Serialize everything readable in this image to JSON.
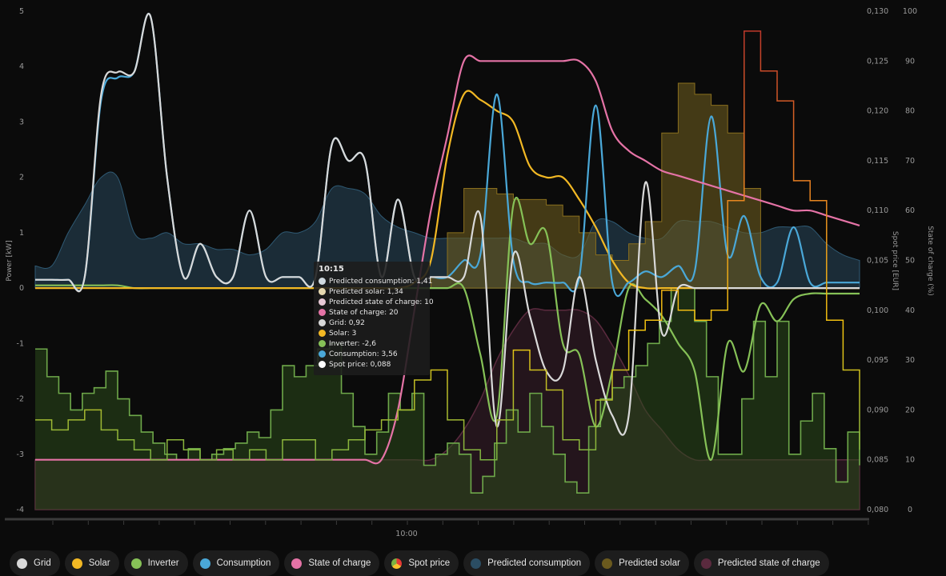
{
  "chart_data": {
    "type": "line",
    "x_axis": {
      "center_label": "10:00"
    },
    "y_axes": {
      "power": {
        "title": "Power [kW]",
        "range": [
          -4,
          5
        ],
        "ticks": [
          "5",
          "4",
          "3",
          "2",
          "1",
          "0",
          "-1",
          "-2",
          "-3",
          "-4"
        ]
      },
      "spot_price": {
        "title": "Spot price [EUR]",
        "range": [
          0.08,
          0.13
        ],
        "ticks": [
          "0,130",
          "0,125",
          "0,120",
          "0,115",
          "0,110",
          "0,105",
          "0,100",
          "0,095",
          "0,090",
          "0,085",
          "0,080"
        ]
      },
      "soc": {
        "title": "State of charge (%)",
        "range": [
          0,
          100
        ],
        "ticks": [
          "100",
          "90",
          "80",
          "70",
          "60",
          "50",
          "40",
          "30",
          "20",
          "10",
          "0"
        ]
      }
    },
    "series": [
      {
        "name": "Grid",
        "color": "#d9d9d9",
        "axis": "power",
        "values": [
          0.15,
          0.15,
          0.15,
          0.2,
          3.5,
          3.9,
          3.9,
          4.9,
          2.0,
          0.2,
          0.8,
          0.2,
          0.2,
          1.4,
          0.2,
          0.2,
          0.2,
          0.2,
          2.6,
          2.3,
          2.3,
          0.2,
          1.6,
          0.2,
          0.2,
          0.2,
          0.2,
          1.3,
          -2.5,
          0.6,
          -0.5,
          -1.5,
          -1.5,
          0.2,
          -1.3,
          -2.3,
          -2.3,
          1.9,
          -0.8,
          0.0,
          0.0,
          0.0,
          0.0,
          0.0,
          0.0,
          0.0,
          0.0,
          0.0,
          0.0,
          0.0,
          0.0
        ]
      },
      {
        "name": "Consumption",
        "color": "#4aa8d8",
        "axis": "power",
        "values": [
          0.15,
          0.15,
          0.15,
          0.2,
          3.4,
          3.8,
          3.9,
          4.9,
          2.0,
          0.2,
          0.8,
          0.2,
          0.2,
          1.4,
          0.2,
          0.2,
          0.2,
          0.2,
          2.6,
          2.3,
          2.3,
          0.2,
          1.6,
          0.2,
          0.2,
          0.2,
          0.5,
          0.6,
          3.5,
          0.5,
          0.1,
          0.1,
          0.1,
          0.2,
          3.3,
          0.1,
          0.1,
          0.3,
          0.2,
          0.4,
          0.3,
          3.1,
          0.6,
          1.3,
          0.2,
          0.1,
          1.1,
          0.1,
          0.1,
          0.1,
          0.1
        ]
      },
      {
        "name": "Inverter",
        "color": "#86c157",
        "axis": "power",
        "values": [
          0.05,
          0.05,
          0.05,
          0.05,
          0.05,
          0.05,
          0.0,
          0.0,
          0.0,
          0.0,
          0.0,
          0.0,
          0.0,
          0.0,
          0.0,
          0.0,
          0.0,
          0.0,
          0.0,
          0.0,
          0.0,
          0.0,
          0.0,
          0.0,
          0.0,
          0.0,
          0.0,
          -1.2,
          -2.3,
          1.5,
          0.8,
          1.0,
          -1.0,
          -1.2,
          -2.5,
          -1.5,
          0.0,
          -0.2,
          -0.5,
          -1.0,
          -1.5,
          -3.1,
          -1.0,
          -1.5,
          -0.3,
          -0.6,
          -0.2,
          -0.1,
          -0.1,
          -0.1,
          -0.1
        ]
      },
      {
        "name": "Solar",
        "color": "#f2b824",
        "axis": "power",
        "values": [
          0.0,
          0.0,
          0.0,
          0.0,
          0.0,
          0.0,
          0.0,
          0.0,
          0.0,
          0.0,
          0.0,
          0.0,
          0.0,
          0.0,
          0.0,
          0.0,
          0.0,
          0.0,
          0.0,
          0.0,
          0.0,
          0.0,
          0.0,
          0.1,
          0.5,
          2.4,
          3.5,
          3.4,
          3.2,
          3.0,
          2.2,
          2.0,
          2.0,
          1.6,
          1.1,
          0.5,
          0.1,
          0.0,
          0.0,
          0.0,
          0.0,
          0.0,
          0.0,
          0.0,
          0.0,
          0.0,
          0.0,
          0.0,
          0.0,
          0.0,
          0.0
        ]
      },
      {
        "name": "State of charge",
        "color": "#e573a6",
        "axis": "soc",
        "values": [
          10,
          10,
          10,
          10,
          10,
          10,
          10,
          10,
          10,
          10,
          10,
          10,
          10,
          10,
          10,
          10,
          10,
          10,
          10,
          10,
          10,
          10,
          20,
          40,
          60,
          75,
          90,
          90,
          90,
          90,
          90,
          90,
          90,
          90,
          86,
          76,
          72,
          70,
          68,
          67,
          66,
          65,
          64,
          63,
          62,
          61,
          60,
          60,
          59,
          58,
          57
        ]
      },
      {
        "name": "Spot price",
        "color": "#f0a030",
        "axis": "spot_price",
        "values": [
          0.089,
          0.088,
          0.089,
          0.09,
          0.088,
          0.087,
          0.086,
          0.085,
          0.087,
          0.086,
          0.085,
          0.086,
          0.085,
          0.086,
          0.085,
          0.087,
          0.087,
          0.085,
          0.086,
          0.087,
          0.088,
          0.089,
          0.09,
          0.093,
          0.094,
          0.089,
          0.086,
          0.085,
          0.089,
          0.096,
          0.094,
          0.092,
          0.087,
          0.086,
          0.091,
          0.094,
          0.098,
          0.099,
          0.102,
          0.1,
          0.099,
          0.1,
          0.111,
          0.128,
          0.124,
          0.121,
          0.113,
          0.111,
          0.099,
          0.094,
          0.086
        ]
      },
      {
        "name": "Predicted consumption",
        "color": "#2b4d63",
        "axis": "power",
        "values": [
          0.4,
          0.4,
          1.0,
          1.5,
          2.0,
          2.0,
          1.0,
          0.9,
          1.0,
          0.8,
          0.8,
          0.7,
          0.7,
          0.6,
          0.7,
          1.0,
          1.0,
          1.2,
          1.8,
          1.8,
          1.7,
          1.3,
          1.1,
          1.0,
          0.9,
          0.9,
          0.9,
          0.9,
          0.9,
          0.9,
          0.8,
          0.8,
          0.6,
          0.6,
          1.2,
          1.2,
          1.0,
          0.9,
          0.9,
          1.2,
          1.2,
          1.2,
          1.1,
          1.0,
          1.0,
          1.1,
          1.1,
          1.1,
          0.8,
          0.6,
          0.5
        ]
      },
      {
        "name": "Predicted solar",
        "color": "#6b5a1e",
        "axis": "power",
        "values": [
          0,
          0,
          0,
          0,
          0,
          0,
          0,
          0,
          0,
          0,
          0,
          0,
          0,
          0,
          0,
          0,
          0,
          0,
          0,
          0,
          0,
          0,
          0,
          0,
          0.2,
          1.0,
          1.8,
          1.8,
          1.7,
          1.6,
          1.6,
          1.5,
          1.3,
          1.0,
          0.6,
          0.5,
          0.8,
          1.2,
          2.8,
          3.7,
          3.5,
          3.3,
          2.8,
          1.8,
          0,
          0,
          0,
          0,
          0,
          0,
          0
        ]
      },
      {
        "name": "Predicted state of charge",
        "color": "#5a2a3e",
        "axis": "soc",
        "values": [
          10,
          10,
          10,
          10,
          10,
          10,
          10,
          10,
          10,
          10,
          10,
          10,
          10,
          10,
          10,
          10,
          10,
          10,
          10,
          10,
          10,
          10,
          10,
          10,
          10,
          12,
          16,
          22,
          30,
          36,
          40,
          40,
          40,
          40,
          38,
          33,
          27,
          20,
          16,
          12,
          10,
          10,
          10,
          10,
          10,
          10,
          10,
          10,
          10,
          10,
          10
        ]
      }
    ],
    "inverter_steps": {
      "name": "Inverter (planned)",
      "color": "#6ea84a",
      "values": [
        -1.1,
        -1.6,
        -1.9,
        -2.2,
        -1.9,
        -1.8,
        -1.5,
        -2.0,
        -2.3,
        -2.6,
        -2.8,
        -3.0,
        -3.1,
        -2.9,
        -3.1,
        -3.0,
        -2.9,
        -2.8,
        -2.6,
        -2.7,
        -2.2,
        -1.4,
        -1.6,
        -1.4,
        -1.1,
        -1.0,
        -1.9,
        -2.5,
        -3.0,
        -2.6,
        -1.9,
        -2.2,
        -1.9,
        -3.2,
        -3.0,
        -2.8,
        -3.0,
        -3.7,
        -3.4,
        -2.8,
        -2.2,
        -2.6,
        -1.9,
        -2.5,
        -3.0,
        -3.5,
        -3.7,
        -2.5,
        -2.0,
        -1.8,
        -1.6,
        -1.4,
        -1.0,
        -0.6,
        0.0,
        0.0,
        -0.6,
        -1.6,
        -3.0,
        -3.0,
        -2.0,
        -0.6,
        -1.6,
        -0.6,
        -3.0,
        -2.4,
        -1.9,
        -2.9,
        -3.5,
        -2.6,
        -3.2
      ]
    }
  },
  "tooltip": {
    "time": "10:15",
    "rows": [
      {
        "label": "Predicted consumption: 1,41",
        "color": "#cfd9df"
      },
      {
        "label": "Predicted solar: 1,34",
        "color": "#e6d8b0"
      },
      {
        "label": "Predicted state of charge: 10",
        "color": "#e8c9d6"
      },
      {
        "label": "State of charge: 20",
        "color": "#e573a6"
      },
      {
        "label": "Grid: 0,92",
        "color": "#d9d9d9"
      },
      {
        "label": "Solar: 3",
        "color": "#f2b824"
      },
      {
        "label": "Inverter: -2,6",
        "color": "#86c157"
      },
      {
        "label": "Consumption: 3,56",
        "color": "#4aa8d8"
      },
      {
        "label": "Spot price: 0,088",
        "color": "#ffffff"
      }
    ]
  },
  "legend": [
    {
      "label": "Grid",
      "color": "#d9d9d9"
    },
    {
      "label": "Solar",
      "color": "#f2b824"
    },
    {
      "label": "Inverter",
      "color": "#86c157"
    },
    {
      "label": "Consumption",
      "color": "#4aa8d8"
    },
    {
      "label": "State of charge",
      "color": "#e573a6"
    },
    {
      "label": "Spot price",
      "color": "gradient"
    },
    {
      "label": "Predicted consumption",
      "color": "#2b4d63"
    },
    {
      "label": "Predicted solar",
      "color": "#6b5a1e"
    },
    {
      "label": "Predicted state of charge",
      "color": "#5a2a3e"
    }
  ]
}
